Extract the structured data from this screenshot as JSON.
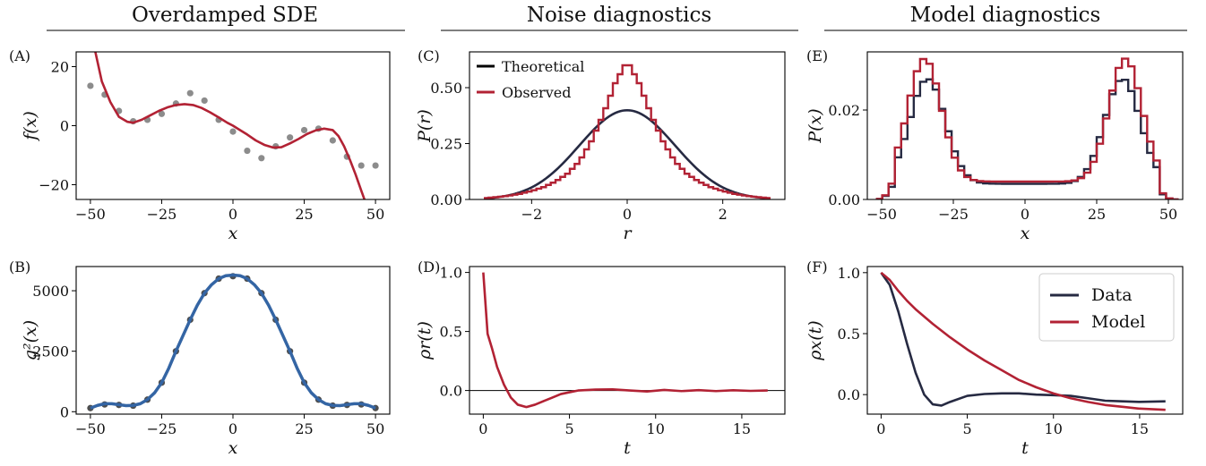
{
  "column_titles": [
    "Overdamped SDE",
    "Noise diagnostics",
    "Model diagnostics"
  ],
  "colors": {
    "red": "#b22234",
    "navy": "#262a42",
    "blue": "#3465a4",
    "gray": "#8c8c8c",
    "black": "#000000"
  },
  "chart_data": [
    {
      "id": "A",
      "panel_label": "(A)",
      "type": "scatter",
      "xlabel": "x",
      "ylabel": "f(x)",
      "xlim": [
        -55,
        55
      ],
      "ylim": [
        -25,
        25
      ],
      "xticks": [
        -50,
        -25,
        0,
        25,
        50
      ],
      "xtick_labels": [
        "−50",
        "−25",
        "0",
        "25",
        "50"
      ],
      "yticks": [
        -20,
        0,
        20
      ],
      "ytick_labels": [
        "−20",
        "0",
        "20"
      ],
      "series": [
        {
          "kind": "points",
          "color": "#8c8c8c",
          "x": [
            -50,
            -45,
            -40,
            -35,
            -30,
            -25,
            -20,
            -15,
            -10,
            -5,
            0,
            5,
            10,
            15,
            20,
            25,
            30,
            35,
            40,
            45,
            50
          ],
          "y": [
            13.5,
            10.5,
            5,
            1.5,
            2,
            4,
            7.5,
            11,
            8.5,
            2,
            -2,
            -8.5,
            -11,
            -7,
            -4,
            -1.5,
            -1,
            -5,
            -10.5,
            -13.5,
            -13.5
          ]
        },
        {
          "kind": "line",
          "color": "#b22234",
          "x": [
            -48.5,
            -46,
            -43,
            -40,
            -37,
            -35,
            -32,
            -29,
            -26,
            -23,
            -20,
            -17,
            -14,
            -11,
            -8,
            -5,
            -2,
            0,
            2,
            5,
            8,
            11,
            14,
            17,
            20,
            23,
            26,
            29,
            32,
            35,
            37,
            39,
            41,
            43,
            45,
            46.5
          ],
          "y": [
            26,
            15,
            8,
            3,
            1.3,
            1,
            2,
            3.5,
            5,
            6.2,
            7,
            7.3,
            7,
            6,
            4.5,
            2.8,
            1,
            0,
            -1.2,
            -3,
            -5,
            -6.5,
            -7.4,
            -7.3,
            -6,
            -4.5,
            -2.8,
            -1.6,
            -1,
            -1.5,
            -3.5,
            -7,
            -11.5,
            -16.5,
            -22,
            -26
          ]
        }
      ]
    },
    {
      "id": "B",
      "panel_label": "(B)",
      "type": "scatter",
      "xlabel": "x",
      "ylabel": "g²(x)",
      "xlim": [
        -55,
        55
      ],
      "ylim": [
        -100,
        6000
      ],
      "xticks": [
        -50,
        -25,
        0,
        25,
        50
      ],
      "xtick_labels": [
        "−50",
        "−25",
        "0",
        "25",
        "50"
      ],
      "yticks": [
        0,
        2500,
        5000
      ],
      "ytick_labels": [
        "0",
        "2500",
        "5000"
      ],
      "series": [
        {
          "kind": "points",
          "color": "#4d4d4d",
          "x": [
            -50,
            -45,
            -40,
            -35,
            -30,
            -25,
            -20,
            -15,
            -10,
            -5,
            0,
            5,
            10,
            15,
            20,
            25,
            30,
            35,
            40,
            45,
            50
          ],
          "y": [
            150,
            300,
            280,
            250,
            500,
            1200,
            2500,
            3800,
            4900,
            5500,
            5600,
            5500,
            4900,
            3800,
            2500,
            1200,
            500,
            250,
            280,
            300,
            150
          ]
        },
        {
          "kind": "line",
          "color": "#3465a4",
          "x": [
            -50,
            -47.5,
            -45,
            -42.5,
            -40,
            -37.5,
            -35,
            -32.5,
            -30,
            -27.5,
            -25,
            -22.5,
            -20,
            -17.5,
            -15,
            -12.5,
            -10,
            -7.5,
            -5,
            -2.5,
            0,
            2.5,
            5,
            7.5,
            10,
            12.5,
            15,
            17.5,
            20,
            22.5,
            25,
            27.5,
            30,
            32.5,
            35,
            37.5,
            40,
            42.5,
            45,
            47.5,
            50
          ],
          "y": [
            150,
            260,
            330,
            330,
            290,
            250,
            260,
            330,
            500,
            780,
            1200,
            1800,
            2500,
            3150,
            3800,
            4400,
            4900,
            5250,
            5500,
            5620,
            5650,
            5620,
            5500,
            5250,
            4900,
            4400,
            3800,
            3150,
            2500,
            1800,
            1200,
            780,
            500,
            330,
            260,
            250,
            290,
            330,
            330,
            260,
            150
          ]
        }
      ]
    },
    {
      "id": "C",
      "panel_label": "(C)",
      "type": "line",
      "xlabel": "r",
      "ylabel": "P(r)",
      "xlim": [
        -3.3,
        3.3
      ],
      "ylim": [
        0,
        0.66
      ],
      "xticks": [
        -2,
        0,
        2
      ],
      "xtick_labels": [
        "−2",
        "0",
        "2"
      ],
      "yticks": [
        0,
        0.25,
        0.5
      ],
      "ytick_labels": [
        "0.00",
        "0.25",
        "0.50"
      ],
      "legend": {
        "placement": "top-left",
        "entries": [
          "Theoretical",
          "Observed"
        ]
      },
      "series": [
        {
          "name": "Theoretical",
          "kind": "gaussian",
          "color": "#262a42",
          "mu": 0,
          "sigma": 1,
          "x_range": [
            -3,
            3
          ]
        },
        {
          "name": "Observed",
          "kind": "step",
          "color": "#b22234",
          "x": [
            -3,
            -2.75,
            -2.5,
            -2.25,
            -2,
            -1.75,
            -1.5,
            -1.25,
            -1,
            -0.75,
            -0.5,
            -0.25,
            0,
            0.25,
            0.5,
            0.75,
            1,
            1.25,
            1.5,
            1.75,
            2,
            2.25,
            2.5,
            2.75,
            3
          ],
          "y": [
            0.005,
            0.01,
            0.016,
            0.025,
            0.038,
            0.055,
            0.08,
            0.115,
            0.17,
            0.26,
            0.38,
            0.52,
            0.62,
            0.52,
            0.38,
            0.26,
            0.17,
            0.115,
            0.08,
            0.055,
            0.038,
            0.025,
            0.016,
            0.01,
            0.005
          ]
        }
      ]
    },
    {
      "id": "D",
      "panel_label": "(D)",
      "type": "line",
      "xlabel": "t",
      "ylabel": "ρr(t)",
      "xlim": [
        -0.8,
        17.5
      ],
      "ylim": [
        -0.2,
        1.05
      ],
      "xticks": [
        0,
        5,
        10,
        15
      ],
      "xtick_labels": [
        "0",
        "5",
        "10",
        "15"
      ],
      "yticks": [
        0,
        0.5,
        1
      ],
      "ytick_labels": [
        "0.0",
        "0.5",
        "1.0"
      ],
      "hline": 0,
      "series": [
        {
          "kind": "line",
          "color": "#b22234",
          "x": [
            0,
            0.25,
            0.5,
            0.8,
            1.2,
            1.6,
            2.0,
            2.5,
            3.0,
            3.5,
            4.0,
            4.5,
            5.0,
            5.5,
            6.5,
            7.5,
            8.5,
            9.5,
            10.5,
            11.5,
            12.5,
            13.5,
            14.5,
            15.5,
            16.5
          ],
          "y": [
            1.0,
            0.48,
            0.36,
            0.2,
            0.05,
            -0.06,
            -0.12,
            -0.14,
            -0.12,
            -0.09,
            -0.06,
            -0.03,
            -0.015,
            0.0,
            0.008,
            0.01,
            0.0,
            -0.008,
            0.005,
            -0.005,
            0.003,
            -0.005,
            0.002,
            -0.003,
            0.0
          ]
        }
      ]
    },
    {
      "id": "E",
      "panel_label": "(E)",
      "type": "line",
      "xlabel": "x",
      "ylabel": "P(x)",
      "xlim": [
        -55,
        55
      ],
      "ylim": [
        0,
        0.033
      ],
      "xticks": [
        -50,
        -25,
        0,
        25,
        50
      ],
      "xtick_labels": [
        "−50",
        "−25",
        "0",
        "25",
        "50"
      ],
      "yticks": [
        0,
        0.02
      ],
      "ytick_labels": [
        "0.00",
        "0.02"
      ],
      "series": [
        {
          "kind": "bimodal",
          "color": "#262a42",
          "amp": 0.0235,
          "sigma": 6.2,
          "center": 34,
          "base": 0.0035,
          "bin": 2.2
        },
        {
          "kind": "bimodal",
          "color": "#b22234",
          "amp": 0.0275,
          "sigma": 5.8,
          "center": 35,
          "base": 0.004,
          "bin": 2.2
        }
      ]
    },
    {
      "id": "F",
      "panel_label": "(F)",
      "type": "line",
      "xlabel": "t",
      "ylabel": "ρx(t)",
      "xlim": [
        -0.8,
        17.5
      ],
      "ylim": [
        -0.16,
        1.05
      ],
      "xticks": [
        0,
        5,
        10,
        15
      ],
      "xtick_labels": [
        "0",
        "5",
        "10",
        "15"
      ],
      "yticks": [
        0,
        0.5,
        1
      ],
      "ytick_labels": [
        "0.0",
        "0.5",
        "1.0"
      ],
      "legend": {
        "placement": "top-right",
        "entries": [
          "Data",
          "Model"
        ]
      },
      "series": [
        {
          "name": "Data",
          "kind": "line",
          "color": "#262a42",
          "x": [
            0,
            0.5,
            1.0,
            1.5,
            2.0,
            2.5,
            3.0,
            3.5,
            4.0,
            5.0,
            6.0,
            7.0,
            8.0,
            9.0,
            10.0,
            11.0,
            12.0,
            13.0,
            14.0,
            15.0,
            16.5
          ],
          "y": [
            1.0,
            0.9,
            0.68,
            0.42,
            0.18,
            0.0,
            -0.08,
            -0.09,
            -0.06,
            -0.01,
            0.005,
            0.01,
            0.01,
            0.0,
            -0.005,
            -0.01,
            -0.03,
            -0.05,
            -0.055,
            -0.06,
            -0.055
          ]
        },
        {
          "name": "Model",
          "kind": "line",
          "color": "#b22234",
          "x": [
            0,
            0.5,
            1,
            1.5,
            2,
            3,
            4,
            5,
            6,
            7,
            8,
            9,
            10,
            11,
            12,
            13,
            14,
            15,
            16.5
          ],
          "y": [
            1.0,
            0.94,
            0.85,
            0.77,
            0.7,
            0.58,
            0.47,
            0.37,
            0.28,
            0.2,
            0.12,
            0.06,
            0.01,
            -0.03,
            -0.06,
            -0.085,
            -0.1,
            -0.115,
            -0.125
          ]
        }
      ]
    }
  ]
}
